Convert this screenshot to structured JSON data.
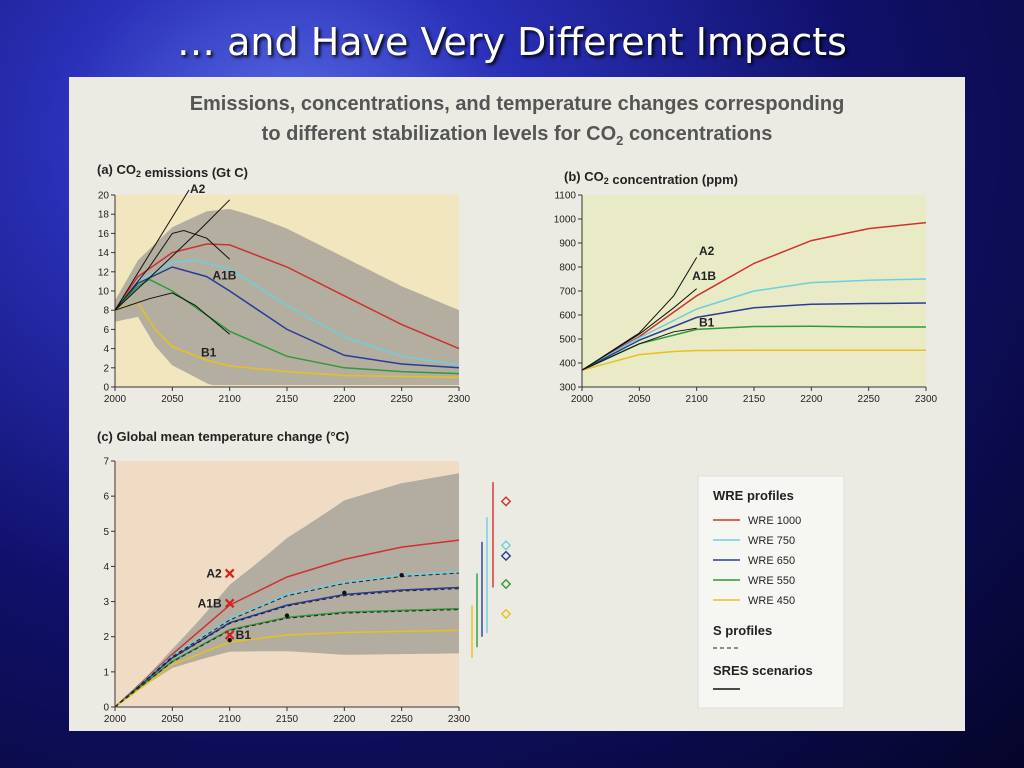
{
  "slide": {
    "title": "… and Have Very Different Impacts"
  },
  "figure": {
    "title_line1": "Emissions, concentrations, and temperature changes corresponding",
    "title_line2_prefix": "to different stabilization levels for CO",
    "title_line2_sub": "2",
    "title_line2_suffix": " concentrations"
  },
  "colors": {
    "wre1000": "#d03030",
    "wre750": "#6ccfe0",
    "wre650": "#283c98",
    "wre550": "#2f9a3a",
    "wre450": "#e8c020",
    "band": "#a8a39a",
    "bg_a": "#f1e6bd",
    "bg_b": "#e9ebc6",
    "bg_c": "#f0dcc4"
  },
  "chart_data": [
    {
      "type": "line",
      "title": "(a) CO₂ emissions (Gt C)",
      "xlim": [
        2000,
        2300
      ],
      "ylim": [
        0,
        20
      ],
      "xticks": [
        2000,
        2050,
        2100,
        2150,
        2200,
        2250,
        2300
      ],
      "yticks": [
        0,
        2,
        4,
        6,
        8,
        10,
        12,
        14,
        16,
        18,
        20
      ],
      "series": [
        {
          "name": "WRE 1000",
          "color": "wre1000",
          "points": [
            [
              2000,
              8.0
            ],
            [
              2020,
              11.5
            ],
            [
              2050,
              14
            ],
            [
              2080,
              14.9
            ],
            [
              2100,
              14.8
            ],
            [
              2150,
              12.5
            ],
            [
              2200,
              9.5
            ],
            [
              2250,
              6.5
            ],
            [
              2300,
              4.0
            ]
          ]
        },
        {
          "name": "WRE 750",
          "color": "wre750",
          "points": [
            [
              2000,
              8.0
            ],
            [
              2020,
              11
            ],
            [
              2050,
              13
            ],
            [
              2070,
              13.2
            ],
            [
              2100,
              12.3
            ],
            [
              2150,
              8.5
            ],
            [
              2200,
              5.2
            ],
            [
              2250,
              3.2
            ],
            [
              2300,
              2.3
            ]
          ]
        },
        {
          "name": "WRE 650",
          "color": "wre650",
          "points": [
            [
              2000,
              8.0
            ],
            [
              2020,
              10.8
            ],
            [
              2050,
              12.5
            ],
            [
              2080,
              11.5
            ],
            [
              2100,
              10.0
            ],
            [
              2150,
              6.0
            ],
            [
              2200,
              3.3
            ],
            [
              2250,
              2.4
            ],
            [
              2300,
              2.0
            ]
          ]
        },
        {
          "name": "WRE 550",
          "color": "wre550",
          "points": [
            [
              2000,
              8.0
            ],
            [
              2020,
              10.5
            ],
            [
              2030,
              11.2
            ],
            [
              2050,
              10.0
            ],
            [
              2100,
              5.8
            ],
            [
              2150,
              3.2
            ],
            [
              2200,
              2.0
            ],
            [
              2250,
              1.6
            ],
            [
              2300,
              1.4
            ]
          ]
        },
        {
          "name": "WRE 450",
          "color": "wre450",
          "points": [
            [
              2000,
              8.0
            ],
            [
              2020,
              8.8
            ],
            [
              2035,
              6.0
            ],
            [
              2050,
              4.2
            ],
            [
              2080,
              2.8
            ],
            [
              2100,
              2.2
            ],
            [
              2150,
              1.6
            ],
            [
              2200,
              1.2
            ],
            [
              2300,
              1.0
            ]
          ]
        }
      ],
      "sres": [
        {
          "label": "A2",
          "points": [
            [
              2000,
              8.0
            ],
            [
              2040,
              12.5
            ],
            [
              2075,
              16.5
            ],
            [
              2100,
              19.5
            ]
          ]
        },
        {
          "label": "A1B",
          "points": [
            [
              2000,
              8.0
            ],
            [
              2030,
              12.5
            ],
            [
              2050,
              16.0
            ],
            [
              2060,
              16.3
            ],
            [
              2080,
              15.5
            ],
            [
              2100,
              13.3
            ]
          ]
        },
        {
          "label": "B1",
          "points": [
            [
              2000,
              8.0
            ],
            [
              2030,
              9.2
            ],
            [
              2050,
              9.8
            ],
            [
              2070,
              8.5
            ],
            [
              2100,
              5.5
            ]
          ]
        }
      ],
      "labels": [
        "A2",
        "A1B",
        "B1"
      ]
    },
    {
      "type": "line",
      "title": "(b) CO₂ concentration (ppm)",
      "xlim": [
        2000,
        2300
      ],
      "ylim": [
        300,
        1100
      ],
      "xticks": [
        2000,
        2050,
        2100,
        2150,
        2200,
        2250,
        2300
      ],
      "yticks": [
        300,
        400,
        500,
        600,
        700,
        800,
        900,
        1000,
        1100
      ],
      "series": [
        {
          "name": "WRE 1000",
          "color": "wre1000",
          "points": [
            [
              2000,
              370
            ],
            [
              2050,
              510
            ],
            [
              2100,
              680
            ],
            [
              2150,
              815
            ],
            [
              2200,
              910
            ],
            [
              2250,
              960
            ],
            [
              2300,
              985
            ]
          ]
        },
        {
          "name": "WRE 750",
          "color": "wre750",
          "points": [
            [
              2000,
              370
            ],
            [
              2050,
              505
            ],
            [
              2100,
              625
            ],
            [
              2150,
              700
            ],
            [
              2200,
              735
            ],
            [
              2250,
              745
            ],
            [
              2300,
              750
            ]
          ]
        },
        {
          "name": "WRE 650",
          "color": "wre650",
          "points": [
            [
              2000,
              370
            ],
            [
              2050,
              495
            ],
            [
              2100,
              590
            ],
            [
              2150,
              630
            ],
            [
              2200,
              645
            ],
            [
              2250,
              648
            ],
            [
              2300,
              650
            ]
          ]
        },
        {
          "name": "WRE 550",
          "color": "wre550",
          "points": [
            [
              2000,
              370
            ],
            [
              2050,
              480
            ],
            [
              2100,
              540
            ],
            [
              2150,
              552
            ],
            [
              2200,
              553
            ],
            [
              2250,
              550
            ],
            [
              2300,
              550
            ]
          ]
        },
        {
          "name": "WRE 450",
          "color": "wre450",
          "points": [
            [
              2000,
              370
            ],
            [
              2050,
              435
            ],
            [
              2080,
              448
            ],
            [
              2100,
              452
            ],
            [
              2150,
              453
            ],
            [
              2300,
              453
            ]
          ]
        }
      ],
      "sres": [
        {
          "label": "A2",
          "points": [
            [
              2000,
              370
            ],
            [
              2050,
              525
            ],
            [
              2080,
              680
            ],
            [
              2100,
              840
            ]
          ]
        },
        {
          "label": "A1B",
          "points": [
            [
              2000,
              370
            ],
            [
              2050,
              520
            ],
            [
              2080,
              630
            ],
            [
              2100,
              710
            ]
          ]
        },
        {
          "label": "B1",
          "points": [
            [
              2000,
              370
            ],
            [
              2050,
              480
            ],
            [
              2080,
              530
            ],
            [
              2100,
              545
            ]
          ]
        }
      ],
      "labels": [
        "A2",
        "A1B",
        "B1"
      ]
    },
    {
      "type": "line",
      "title": "(c) Global mean temperature change (°C)",
      "xlim": [
        2000,
        2300
      ],
      "ylim": [
        0,
        7
      ],
      "xticks": [
        2000,
        2050,
        2100,
        2150,
        2200,
        2250,
        2300
      ],
      "yticks": [
        0,
        1,
        2,
        3,
        4,
        5,
        6,
        7
      ],
      "series": [
        {
          "name": "WRE 1000",
          "color": "wre1000",
          "points": [
            [
              2000,
              0
            ],
            [
              2050,
              1.5
            ],
            [
              2100,
              2.9
            ],
            [
              2150,
              3.7
            ],
            [
              2200,
              4.2
            ],
            [
              2250,
              4.55
            ],
            [
              2300,
              4.75
            ]
          ]
        },
        {
          "name": "WRE 750",
          "color": "wre750",
          "points": [
            [
              2000,
              0
            ],
            [
              2050,
              1.45
            ],
            [
              2100,
              2.5
            ],
            [
              2150,
              3.2
            ],
            [
              2200,
              3.55
            ],
            [
              2250,
              3.75
            ],
            [
              2300,
              3.85
            ]
          ]
        },
        {
          "name": "WRE 650",
          "color": "wre650",
          "points": [
            [
              2000,
              0
            ],
            [
              2050,
              1.4
            ],
            [
              2100,
              2.4
            ],
            [
              2150,
              2.9
            ],
            [
              2200,
              3.2
            ],
            [
              2250,
              3.33
            ],
            [
              2300,
              3.4
            ]
          ]
        },
        {
          "name": "WRE 550",
          "color": "wre550",
          "points": [
            [
              2000,
              0
            ],
            [
              2050,
              1.3
            ],
            [
              2100,
              2.2
            ],
            [
              2150,
              2.55
            ],
            [
              2200,
              2.7
            ],
            [
              2250,
              2.75
            ],
            [
              2300,
              2.8
            ]
          ]
        },
        {
          "name": "WRE 450",
          "color": "wre450",
          "points": [
            [
              2000,
              0
            ],
            [
              2050,
              1.2
            ],
            [
              2100,
              1.85
            ],
            [
              2150,
              2.05
            ],
            [
              2200,
              2.12
            ],
            [
              2250,
              2.15
            ],
            [
              2300,
              2.18
            ]
          ]
        }
      ],
      "crosses": [
        {
          "label": "A2",
          "year": 2100,
          "value": 3.8
        },
        {
          "label": "A1B",
          "year": 2100,
          "value": 2.95
        },
        {
          "label": "B1",
          "year": 2100,
          "value": 2.05
        }
      ],
      "labels": [
        "A2",
        "A1B",
        "B1"
      ]
    }
  ],
  "legend": {
    "title": "WRE profiles",
    "items": [
      {
        "label": "WRE 1000",
        "color": "wre1000"
      },
      {
        "label": "WRE 750",
        "color": "wre750"
      },
      {
        "label": "WRE 650",
        "color": "wre650"
      },
      {
        "label": "WRE 550",
        "color": "wre550"
      },
      {
        "label": "WRE 450",
        "color": "wre450"
      }
    ],
    "s_title": "S profiles",
    "sres_title": "SRES scenarios"
  }
}
